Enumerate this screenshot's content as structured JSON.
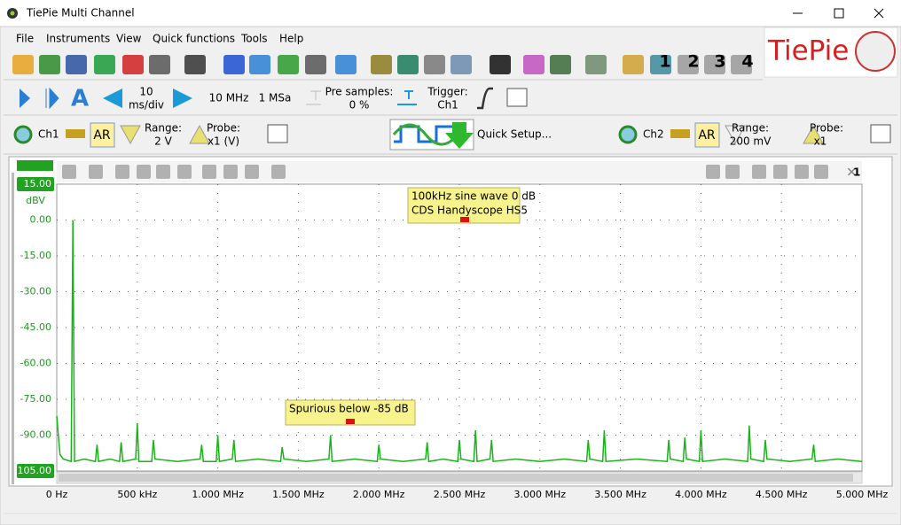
{
  "window": {
    "title": "TiePie Multi Channel"
  },
  "menu": [
    "File",
    "Instruments",
    "View",
    "Quick functions",
    "Tools",
    "Help"
  ],
  "logo": "TiePie",
  "toolbar": {
    "measure_numbers": [
      "1",
      "2",
      "3",
      "4"
    ]
  },
  "timebase": {
    "time_value": "10",
    "time_unit": "ms/div",
    "sample_frequency": "10 MHz",
    "record_length": "1 MSa",
    "pre_samples_label": "Pre samples:",
    "pre_samples": "0 %",
    "trigger_label": "Trigger:",
    "trigger_source": "Ch1"
  },
  "channels": [
    {
      "name": "Ch1",
      "auto_range": "AR",
      "range_label": "Range:",
      "range": "2 V",
      "probe_label": "Probe:",
      "probe": "x1 (V)"
    },
    {
      "name": "Ch2",
      "auto_range": "AR",
      "range_label": "Range:",
      "range": "200 mV",
      "probe_label": "Probe:",
      "probe": "x1"
    }
  ],
  "quick_setup": "Quick Setup...",
  "graph_toolbar": {
    "count": "1"
  },
  "chart_data": {
    "type": "line",
    "y_label": "dBV",
    "color": "#19b419",
    "grid": true,
    "xlim": [
      0,
      5000000
    ],
    "ylim": [
      -105,
      15
    ],
    "xticks": [
      {
        "value": 0,
        "label": "0 Hz"
      },
      {
        "value": 500000,
        "label": "500 kHz"
      },
      {
        "value": 1000000,
        "label": "1.000 MHz"
      },
      {
        "value": 1500000,
        "label": "1.500 MHz"
      },
      {
        "value": 2000000,
        "label": "2.000 MHz"
      },
      {
        "value": 2500000,
        "label": "2.500 MHz"
      },
      {
        "value": 3000000,
        "label": "3.000 MHz"
      },
      {
        "value": 3500000,
        "label": "3.500 MHz"
      },
      {
        "value": 4000000,
        "label": "4.000 MHz"
      },
      {
        "value": 4500000,
        "label": "4.500 MHz"
      },
      {
        "value": 5000000,
        "label": "5.000 MHz"
      }
    ],
    "yticks": [
      {
        "value": 15,
        "label": "15.00"
      },
      {
        "value": 0,
        "label": "0.00"
      },
      {
        "value": -15,
        "label": "-15.00"
      },
      {
        "value": -30,
        "label": "-30.00"
      },
      {
        "value": -45,
        "label": "-45.00"
      },
      {
        "value": -60,
        "label": "-60.00"
      },
      {
        "value": -75,
        "label": "-75.00"
      },
      {
        "value": -90,
        "label": "-90.00"
      },
      {
        "value": -105,
        "label": "-105.00"
      }
    ],
    "x": [
      0,
      20000,
      40000,
      90000,
      100000,
      110000,
      170000,
      240000,
      250000,
      260000,
      330000,
      390000,
      400000,
      410000,
      490000,
      500000,
      510000,
      590000,
      600000,
      610000,
      750000,
      890000,
      900000,
      910000,
      990000,
      1000000,
      1010000,
      1090000,
      1100000,
      1110000,
      1250000,
      1390000,
      1400000,
      1410000,
      1550000,
      1690000,
      1700000,
      1710000,
      1850000,
      1990000,
      2000000,
      2010000,
      2150000,
      2290000,
      2300000,
      2310000,
      2400000,
      2490000,
      2500000,
      2510000,
      2590000,
      2600000,
      2610000,
      2690000,
      2700000,
      2710000,
      2850000,
      3000000,
      3150000,
      3290000,
      3300000,
      3310000,
      3390000,
      3400000,
      3410000,
      3600000,
      3790000,
      3800000,
      3810000,
      3890000,
      3900000,
      3910000,
      3990000,
      4000000,
      4010000,
      4150000,
      4290000,
      4300000,
      4310000,
      4390000,
      4400000,
      4410000,
      4550000,
      4690000,
      4700000,
      4710000,
      4850000,
      5000000
    ],
    "values": [
      -82,
      -98,
      -100,
      -101,
      0,
      -101,
      -100,
      -101,
      -94,
      -101,
      -100,
      -101,
      -93,
      -101,
      -100,
      -85,
      -101,
      -101,
      -92,
      -100,
      -101,
      -100,
      -94,
      -101,
      -101,
      -90,
      -101,
      -100,
      -92,
      -101,
      -100,
      -101,
      -95,
      -100,
      -101,
      -100,
      -90,
      -101,
      -100,
      -101,
      -94,
      -100,
      -101,
      -100,
      -93,
      -101,
      -100,
      -101,
      -92,
      -100,
      -101,
      -88,
      -101,
      -100,
      -92,
      -101,
      -100,
      -101,
      -100,
      -101,
      -92,
      -100,
      -101,
      -88,
      -101,
      -100,
      -101,
      -92,
      -100,
      -101,
      -91,
      -100,
      -101,
      -88,
      -101,
      -100,
      -101,
      -86,
      -100,
      -101,
      -92,
      -100,
      -101,
      -100,
      -94,
      -101,
      -100,
      -101
    ],
    "annotations": [
      {
        "lines": [
          "100kHz sine wave 0 dB",
          "CDS Handyscope HS5"
        ]
      },
      {
        "lines": [
          "Spurious below -85 dB"
        ]
      }
    ]
  }
}
